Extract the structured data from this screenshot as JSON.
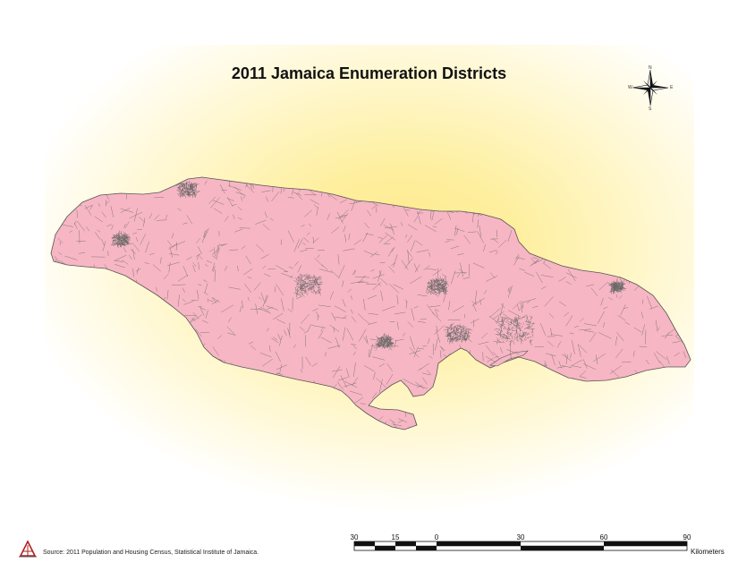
{
  "map": {
    "title": "2011 Jamaica Enumeration Districts",
    "fill_color": "#f7b6c4",
    "boundary_color": "#666666",
    "background_gradient": "#fde98c",
    "source": "Source: 2011 Population and Housing Census, Statistical Institute of Jamaica."
  },
  "north_arrow": {
    "icon": "compass-rose-icon",
    "n": "N",
    "s": "S",
    "e": "E",
    "w": "W"
  },
  "scale_bar": {
    "ticks": [
      "30",
      "15",
      "0",
      "30",
      "60",
      "90"
    ],
    "units": "Kilometers"
  },
  "logo": {
    "icon": "statin-logo-icon"
  }
}
